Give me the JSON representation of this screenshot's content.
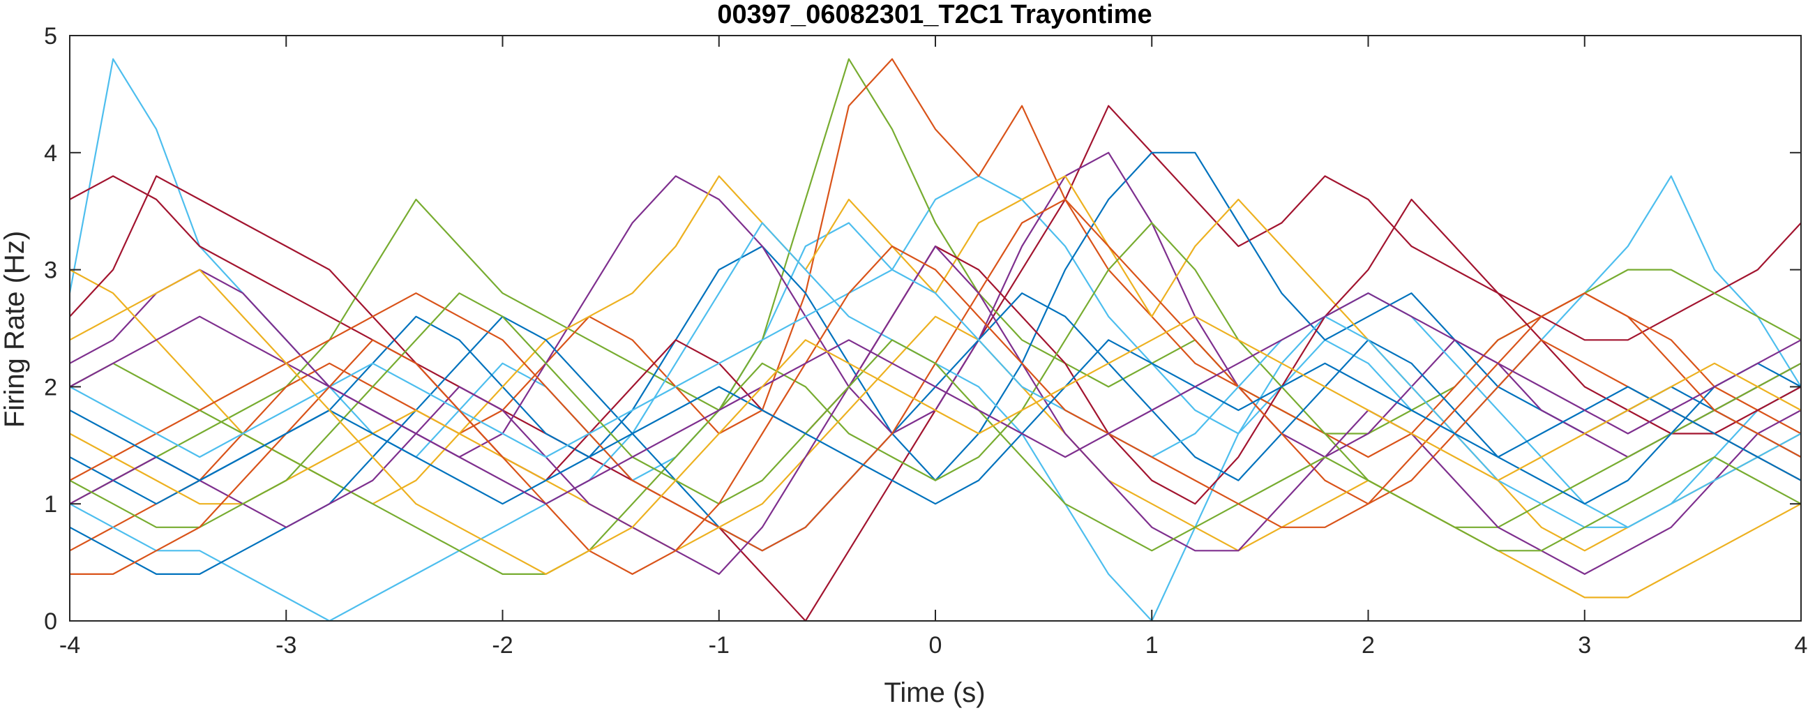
{
  "chart_data": {
    "type": "line",
    "title": "00397_06082301_T2C1 Trayontime",
    "xlabel": "Time (s)",
    "ylabel": "Firing Rate (Hz)",
    "xlim": [
      -4,
      4
    ],
    "ylim": [
      0,
      5
    ],
    "xticks": [
      "-4",
      "-3",
      "-2",
      "-1",
      "0",
      "1",
      "2",
      "3",
      "4"
    ],
    "yticks": [
      "0",
      "1",
      "2",
      "3",
      "4",
      "5"
    ],
    "grid": false,
    "legend": false,
    "x": [
      -4.0,
      -3.8,
      -3.6,
      -3.4,
      -3.2,
      -3.0,
      -2.8,
      -2.6,
      -2.4,
      -2.2,
      -2.0,
      -1.8,
      -1.6,
      -1.4,
      -1.2,
      -1.0,
      -0.8,
      -0.6,
      -0.4,
      -0.2,
      0.0,
      0.2,
      0.4,
      0.6,
      0.8,
      1.0,
      1.2,
      1.4,
      1.6,
      1.8,
      2.0,
      2.2,
      2.4,
      2.6,
      2.8,
      3.0,
      3.2,
      3.4,
      3.6,
      3.8,
      4.0
    ],
    "series": [
      {
        "color": "#4DBEEE",
        "values": [
          2.8,
          4.8,
          4.2,
          3.2,
          2.8,
          2.4,
          2.0,
          1.6,
          1.4,
          1.8,
          2.2,
          2.0,
          1.6,
          1.2,
          1.4,
          1.8,
          2.4,
          3.2,
          3.4,
          3.0,
          3.6,
          3.8,
          3.6,
          3.2,
          2.6,
          2.2,
          1.8,
          1.6,
          2.0,
          2.4,
          2.2,
          1.8,
          1.6,
          2.0,
          2.4,
          2.8,
          3.2,
          3.8,
          3.0,
          2.6,
          2.0
        ]
      },
      {
        "color": "#A2142F",
        "values": [
          3.6,
          3.8,
          3.6,
          3.2,
          3.0,
          2.8,
          2.6,
          2.4,
          2.2,
          2.0,
          1.8,
          1.6,
          1.4,
          1.2,
          1.0,
          0.8,
          0.4,
          0.0,
          0.6,
          1.2,
          1.8,
          2.4,
          3.0,
          3.6,
          4.4,
          4.0,
          3.6,
          3.2,
          3.4,
          3.8,
          3.6,
          3.2,
          3.0,
          2.8,
          2.6,
          2.4,
          2.4,
          2.6,
          2.8,
          3.0,
          3.4
        ]
      },
      {
        "color": "#77AC30",
        "values": [
          1.0,
          1.2,
          1.4,
          1.6,
          1.8,
          2.0,
          2.4,
          3.0,
          3.6,
          3.2,
          2.8,
          2.6,
          2.4,
          2.2,
          2.0,
          1.8,
          2.4,
          3.6,
          4.8,
          4.2,
          3.4,
          2.8,
          2.4,
          2.2,
          2.0,
          2.2,
          2.4,
          2.0,
          1.8,
          1.6,
          1.6,
          1.8,
          2.0,
          2.4,
          2.6,
          2.8,
          3.0,
          3.0,
          2.8,
          2.6,
          2.4
        ]
      },
      {
        "color": "#D95319",
        "values": [
          0.6,
          0.8,
          1.0,
          1.2,
          1.6,
          2.0,
          2.2,
          2.0,
          1.8,
          1.6,
          1.8,
          2.2,
          2.6,
          2.4,
          2.0,
          1.6,
          1.8,
          2.8,
          4.4,
          4.8,
          4.2,
          3.8,
          4.4,
          3.6,
          3.0,
          2.6,
          2.2,
          2.0,
          1.8,
          1.6,
          1.4,
          1.6,
          2.0,
          2.4,
          2.6,
          2.8,
          2.6,
          2.4,
          2.0,
          1.8,
          1.6
        ]
      },
      {
        "color": "#0072BD",
        "values": [
          1.4,
          1.2,
          1.0,
          1.2,
          1.4,
          1.6,
          1.8,
          2.2,
          2.6,
          2.4,
          2.0,
          1.6,
          1.4,
          1.8,
          2.4,
          3.0,
          3.2,
          2.8,
          2.2,
          1.6,
          1.2,
          1.6,
          2.2,
          3.0,
          3.6,
          4.0,
          4.0,
          3.4,
          2.8,
          2.4,
          2.6,
          2.8,
          2.4,
          2.0,
          1.8,
          1.6,
          1.8,
          2.0,
          1.8,
          1.6,
          1.4
        ]
      },
      {
        "color": "#7E2F8E",
        "values": [
          2.2,
          2.4,
          2.8,
          3.0,
          2.8,
          2.4,
          2.0,
          1.8,
          1.6,
          1.4,
          1.6,
          2.2,
          2.8,
          3.4,
          3.8,
          3.6,
          3.2,
          2.6,
          2.0,
          1.6,
          1.8,
          2.4,
          3.2,
          3.8,
          4.0,
          3.4,
          2.6,
          2.0,
          1.6,
          1.4,
          1.6,
          2.0,
          2.4,
          2.2,
          1.8,
          1.6,
          1.4,
          1.6,
          1.8,
          2.0,
          2.2
        ]
      },
      {
        "color": "#EDB120",
        "values": [
          3.0,
          2.8,
          2.4,
          2.0,
          1.6,
          1.4,
          1.2,
          1.0,
          1.2,
          1.6,
          2.0,
          2.4,
          2.6,
          2.8,
          3.2,
          3.8,
          3.4,
          3.0,
          3.6,
          3.2,
          2.8,
          3.4,
          3.6,
          3.8,
          3.2,
          2.6,
          3.2,
          3.6,
          3.2,
          2.8,
          2.4,
          2.0,
          1.6,
          1.2,
          0.8,
          0.6,
          0.8,
          1.0,
          1.2,
          1.4,
          1.6
        ]
      },
      {
        "color": "#4DBEEE",
        "values": [
          1.0,
          0.8,
          0.6,
          0.6,
          0.4,
          0.2,
          0.0,
          0.2,
          0.4,
          0.6,
          0.8,
          1.0,
          1.2,
          1.6,
          2.2,
          2.8,
          3.4,
          3.0,
          2.6,
          2.4,
          2.2,
          2.0,
          1.6,
          1.0,
          0.4,
          0.0,
          0.8,
          1.6,
          2.2,
          2.6,
          2.8,
          2.6,
          2.2,
          1.8,
          1.4,
          1.0,
          0.8,
          1.0,
          1.4,
          1.8,
          2.0
        ]
      },
      {
        "color": "#A2142F",
        "values": [
          2.6,
          3.0,
          3.8,
          3.6,
          3.4,
          3.2,
          3.0,
          2.6,
          2.2,
          1.8,
          1.4,
          1.2,
          1.6,
          2.0,
          2.4,
          2.2,
          1.8,
          1.6,
          2.0,
          2.6,
          3.2,
          3.0,
          2.6,
          2.2,
          1.6,
          1.2,
          1.0,
          1.4,
          2.0,
          2.6,
          3.0,
          3.6,
          3.2,
          2.8,
          2.4,
          2.0,
          1.8,
          1.6,
          1.6,
          1.8,
          2.0
        ]
      },
      {
        "color": "#77AC30",
        "values": [
          2.0,
          2.2,
          2.0,
          1.8,
          1.6,
          1.4,
          1.2,
          1.0,
          0.8,
          0.6,
          0.4,
          0.4,
          0.6,
          1.0,
          1.4,
          1.8,
          2.2,
          2.0,
          1.6,
          1.4,
          1.2,
          1.4,
          1.8,
          2.4,
          3.0,
          3.4,
          3.0,
          2.4,
          2.0,
          1.6,
          1.2,
          1.0,
          0.8,
          0.8,
          1.0,
          1.2,
          1.4,
          1.6,
          1.8,
          2.0,
          2.2
        ]
      },
      {
        "color": "#0072BD",
        "values": [
          0.8,
          0.6,
          0.4,
          0.4,
          0.6,
          0.8,
          1.0,
          1.4,
          1.8,
          2.2,
          2.6,
          2.4,
          2.0,
          1.6,
          1.2,
          0.8,
          0.6,
          0.8,
          1.2,
          1.6,
          2.0,
          2.4,
          2.8,
          2.6,
          2.2,
          1.8,
          1.4,
          1.2,
          1.6,
          2.0,
          2.4,
          2.2,
          1.8,
          1.4,
          1.2,
          1.0,
          1.2,
          1.6,
          2.0,
          2.2,
          2.0
        ]
      },
      {
        "color": "#D95319",
        "values": [
          1.2,
          1.4,
          1.6,
          1.8,
          2.0,
          2.2,
          2.4,
          2.6,
          2.8,
          2.6,
          2.4,
          2.0,
          1.6,
          1.2,
          1.0,
          0.8,
          0.6,
          0.8,
          1.2,
          1.6,
          2.2,
          2.8,
          3.4,
          3.6,
          3.2,
          2.8,
          2.4,
          2.0,
          1.6,
          1.2,
          1.0,
          1.2,
          1.6,
          2.0,
          2.4,
          2.2,
          2.0,
          1.8,
          1.6,
          1.4,
          1.2
        ]
      },
      {
        "color": "#EDB120",
        "values": [
          1.6,
          1.4,
          1.2,
          1.0,
          1.0,
          1.2,
          1.4,
          1.6,
          1.8,
          1.6,
          1.4,
          1.2,
          1.0,
          0.8,
          0.6,
          0.8,
          1.0,
          1.4,
          1.8,
          2.2,
          2.6,
          2.4,
          2.0,
          1.6,
          1.2,
          1.0,
          0.8,
          0.6,
          0.8,
          1.0,
          1.2,
          1.0,
          0.8,
          0.6,
          0.4,
          0.2,
          0.2,
          0.4,
          0.6,
          0.8,
          1.0
        ]
      },
      {
        "color": "#7E2F8E",
        "values": [
          1.0,
          1.2,
          1.4,
          1.2,
          1.0,
          0.8,
          1.0,
          1.2,
          1.6,
          2.0,
          1.8,
          1.4,
          1.0,
          0.8,
          0.6,
          0.4,
          0.8,
          1.4,
          2.0,
          2.6,
          3.2,
          2.8,
          2.2,
          1.6,
          1.2,
          0.8,
          0.6,
          0.6,
          1.0,
          1.4,
          1.8,
          1.6,
          1.2,
          0.8,
          0.6,
          0.4,
          0.6,
          0.8,
          1.2,
          1.6,
          1.8
        ]
      },
      {
        "color": "#4DBEEE",
        "values": [
          2.0,
          1.8,
          1.6,
          1.4,
          1.6,
          1.8,
          2.0,
          2.2,
          2.0,
          1.8,
          1.6,
          1.4,
          1.6,
          1.8,
          2.0,
          2.2,
          2.4,
          2.6,
          2.8,
          3.0,
          2.8,
          2.4,
          2.0,
          1.8,
          1.6,
          1.4,
          1.6,
          2.0,
          2.4,
          2.6,
          2.4,
          2.0,
          1.6,
          1.2,
          1.0,
          0.8,
          0.8,
          1.0,
          1.2,
          1.4,
          1.6
        ]
      },
      {
        "color": "#77AC30",
        "values": [
          1.2,
          1.0,
          0.8,
          0.8,
          1.0,
          1.2,
          1.6,
          2.0,
          2.4,
          2.8,
          2.6,
          2.2,
          1.8,
          1.4,
          1.2,
          1.0,
          1.2,
          1.6,
          2.0,
          2.4,
          2.2,
          1.8,
          1.4,
          1.0,
          0.8,
          0.6,
          0.8,
          1.0,
          1.2,
          1.4,
          1.2,
          1.0,
          0.8,
          0.6,
          0.6,
          0.8,
          1.0,
          1.2,
          1.4,
          1.2,
          1.0
        ]
      },
      {
        "color": "#D95319",
        "values": [
          0.4,
          0.4,
          0.6,
          0.8,
          1.2,
          1.6,
          2.0,
          2.4,
          2.2,
          1.8,
          1.4,
          1.0,
          0.6,
          0.4,
          0.6,
          1.0,
          1.6,
          2.2,
          2.8,
          3.2,
          3.0,
          2.6,
          2.2,
          1.8,
          1.6,
          1.4,
          1.2,
          1.0,
          0.8,
          0.8,
          1.0,
          1.4,
          1.8,
          2.2,
          2.6,
          2.8,
          2.6,
          2.2,
          1.8,
          1.6,
          1.4
        ]
      },
      {
        "color": "#0072BD",
        "values": [
          1.8,
          1.6,
          1.4,
          1.2,
          1.4,
          1.6,
          1.8,
          1.6,
          1.4,
          1.2,
          1.0,
          1.2,
          1.4,
          1.6,
          1.8,
          2.0,
          1.8,
          1.6,
          1.4,
          1.2,
          1.0,
          1.2,
          1.6,
          2.0,
          2.4,
          2.2,
          2.0,
          1.8,
          2.0,
          2.2,
          2.0,
          1.8,
          1.6,
          1.4,
          1.6,
          1.8,
          2.0,
          1.8,
          1.6,
          1.4,
          1.2
        ]
      },
      {
        "color": "#7E2F8E",
        "values": [
          2.0,
          2.2,
          2.4,
          2.6,
          2.4,
          2.2,
          2.0,
          1.8,
          1.6,
          1.4,
          1.2,
          1.0,
          1.2,
          1.4,
          1.6,
          1.8,
          2.0,
          2.2,
          2.4,
          2.2,
          2.0,
          1.8,
          1.6,
          1.4,
          1.6,
          1.8,
          2.0,
          2.2,
          2.4,
          2.6,
          2.8,
          2.6,
          2.4,
          2.2,
          2.0,
          1.8,
          1.6,
          1.8,
          2.0,
          2.2,
          2.4
        ]
      },
      {
        "color": "#EDB120",
        "values": [
          2.4,
          2.6,
          2.8,
          3.0,
          2.6,
          2.2,
          1.8,
          1.4,
          1.0,
          0.8,
          0.6,
          0.4,
          0.6,
          0.8,
          1.2,
          1.6,
          2.0,
          2.4,
          2.2,
          2.0,
          1.8,
          1.6,
          1.8,
          2.0,
          2.2,
          2.4,
          2.6,
          2.4,
          2.2,
          2.0,
          1.8,
          1.6,
          1.4,
          1.2,
          1.4,
          1.6,
          1.8,
          2.0,
          2.2,
          2.0,
          1.8
        ]
      }
    ]
  }
}
